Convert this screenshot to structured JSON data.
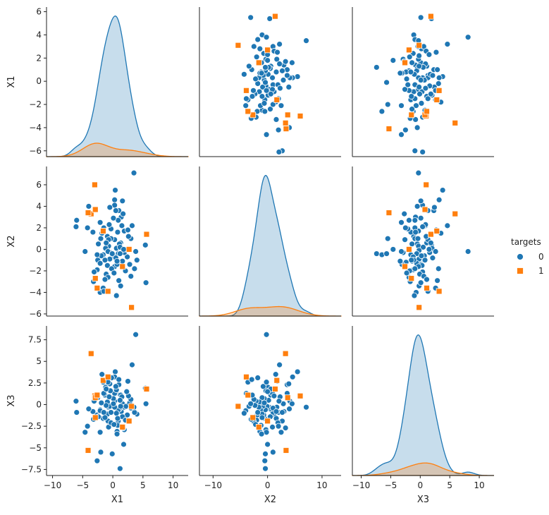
{
  "chart_data": {
    "type": "pairplot",
    "variables": [
      "X1",
      "X2",
      "X3"
    ],
    "legend": {
      "title": "targets",
      "placement": "right",
      "entries": [
        {
          "label": "0",
          "color": "#1f77b4",
          "marker": "circle"
        },
        {
          "label": "1",
          "color": "#ff7f0e",
          "marker": "square"
        }
      ]
    },
    "axes": {
      "X1": {
        "scatter_lim": [
          -11,
          12.5
        ],
        "scatter_ticks": [
          -10,
          -5,
          0,
          5,
          10
        ],
        "row_lim": [
          -6.5,
          6.4
        ],
        "row_ticks": [
          -6,
          -4,
          -2,
          0,
          2,
          4,
          6
        ]
      },
      "X2": {
        "scatter_lim": [
          -12.5,
          13.5
        ],
        "scatter_ticks": [
          -10,
          0,
          10
        ],
        "row_lim": [
          -6.2,
          7.7
        ],
        "row_ticks": [
          -6,
          -4,
          -2,
          0,
          2,
          4,
          6
        ]
      },
      "X3": {
        "scatter_lim": [
          -11.5,
          12.5
        ],
        "scatter_ticks": [
          -10,
          -5,
          0,
          5,
          10
        ],
        "row_lim": [
          -8.2,
          9.1
        ],
        "row_ticks": [
          -7.5,
          -5.0,
          -2.5,
          0.0,
          2.5,
          5.0,
          7.5
        ]
      }
    },
    "points": [
      {
        "x1": 0.4,
        "x2": 5.5,
        "x3": 3.8,
        "t": 0
      },
      {
        "x1": -1.8,
        "x2": 1.5,
        "x3": 3.5,
        "t": 0
      },
      {
        "x1": -2.1,
        "x2": 2.5,
        "x3": -3.2,
        "t": 0
      },
      {
        "x1": 0.3,
        "x2": 4.6,
        "x3": 3.2,
        "t": 0
      },
      {
        "x1": 0.3,
        "x2": 4.1,
        "x3": 0.4,
        "t": 0
      },
      {
        "x1": 1.6,
        "x2": 4.5,
        "x3": 0.1,
        "t": 0
      },
      {
        "x1": 1.0,
        "x2": 3.6,
        "x3": 2.3,
        "t": 0
      },
      {
        "x1": 0.5,
        "x2": 3.6,
        "x3": 1.3,
        "t": 0
      },
      {
        "x1": -0.5,
        "x2": 3.9,
        "x3": 2.4,
        "t": 0
      },
      {
        "x1": 1.4,
        "x2": 3.0,
        "x3": -0.8,
        "t": 0
      },
      {
        "x1": 0.9,
        "x2": 2.7,
        "x3": -1.9,
        "t": 0
      },
      {
        "x1": 5.4,
        "x2": 0.4,
        "x3": 1.9,
        "t": 0
      },
      {
        "x1": 1.3,
        "x2": 0.6,
        "x3": 1.1,
        "t": 0
      },
      {
        "x1": 1.9,
        "x2": 1.7,
        "x3": -0.3,
        "t": 0
      },
      {
        "x1": 1.5,
        "x2": 2.2,
        "x3": 0.9,
        "t": 0
      },
      {
        "x1": -0.9,
        "x2": 1.2,
        "x3": -1.1,
        "t": 0
      },
      {
        "x1": 0.3,
        "x2": 0.9,
        "x3": 1.3,
        "t": 0
      },
      {
        "x1": -0.3,
        "x2": 1.0,
        "x3": -0.9,
        "t": 0
      },
      {
        "x1": 1.1,
        "x2": 0.5,
        "x3": -0.5,
        "t": 0
      },
      {
        "x1": -0.7,
        "x2": 0.3,
        "x3": -0.3,
        "t": 0
      },
      {
        "x1": 0.6,
        "x2": 0.1,
        "x3": 1.7,
        "t": 0
      },
      {
        "x1": 1.2,
        "x2": 0.2,
        "x3": 0.5,
        "t": 0
      },
      {
        "x1": -1.2,
        "x2": 0.1,
        "x3": 2.0,
        "t": 0
      },
      {
        "x1": 2.2,
        "x2": -0.1,
        "x3": -0.2,
        "t": 0
      },
      {
        "x1": -0.4,
        "x2": -0.3,
        "x3": 1.6,
        "t": 0
      },
      {
        "x1": 0.9,
        "x2": -0.4,
        "x3": -0.6,
        "t": 0
      },
      {
        "x1": -1.6,
        "x2": -0.5,
        "x3": -1.6,
        "t": 0
      },
      {
        "x1": 0.1,
        "x2": -0.6,
        "x3": 0.7,
        "t": 0
      },
      {
        "x1": 2.4,
        "x2": -0.7,
        "x3": -1.2,
        "t": 0
      },
      {
        "x1": 0.5,
        "x2": -0.8,
        "x3": 2.1,
        "t": 0
      },
      {
        "x1": -0.5,
        "x2": -0.9,
        "x3": -0.2,
        "t": 0
      },
      {
        "x1": -2.5,
        "x2": -1.0,
        "x3": 0.8,
        "t": 0
      },
      {
        "x1": 1.6,
        "x2": -1.1,
        "x3": -1.4,
        "t": 0
      },
      {
        "x1": 0.8,
        "x2": -1.2,
        "x3": -2.4,
        "t": 0
      },
      {
        "x1": -2.1,
        "x2": -1.3,
        "x3": -0.6,
        "t": 0
      },
      {
        "x1": 2.8,
        "x2": -1.4,
        "x3": 0.2,
        "t": 0
      },
      {
        "x1": -0.9,
        "x2": -1.5,
        "x3": 0.3,
        "t": 0
      },
      {
        "x1": 0.3,
        "x2": -1.6,
        "x3": -0.3,
        "t": 0
      },
      {
        "x1": -0.2,
        "x2": -1.8,
        "x3": 3.1,
        "t": 0
      },
      {
        "x1": -2.6,
        "x2": -1.9,
        "x3": -1.2,
        "t": 0
      },
      {
        "x1": 2.1,
        "x2": -2.0,
        "x3": -1.8,
        "t": 0
      },
      {
        "x1": -3.1,
        "x2": -2.1,
        "x3": 0.4,
        "t": 0
      },
      {
        "x1": -1.1,
        "x2": -2.3,
        "x3": -0.1,
        "t": 0
      },
      {
        "x1": 3.0,
        "x2": -2.5,
        "x3": 0.6,
        "t": 0
      },
      {
        "x1": -0.8,
        "x2": -2.6,
        "x3": -1.9,
        "t": 0
      },
      {
        "x1": -1.3,
        "x2": -2.8,
        "x3": 1.1,
        "t": 0
      },
      {
        "x1": -3.2,
        "x2": -3.0,
        "x3": -1.7,
        "t": 0
      },
      {
        "x1": -1.6,
        "x2": -3.6,
        "x3": 2.6,
        "t": 0
      },
      {
        "x1": -2.1,
        "x2": -4.0,
        "x3": -0.7,
        "t": 0
      },
      {
        "x1": 0.6,
        "x2": -4.3,
        "x3": -1.0,
        "t": 0
      },
      {
        "x1": -1.5,
        "x2": -3.9,
        "x3": 1.3,
        "t": 0
      },
      {
        "x1": 1.0,
        "x2": -2.9,
        "x3": 2.9,
        "t": 0
      },
      {
        "x1": -0.7,
        "x2": 0.9,
        "x3": -2.6,
        "t": 0
      },
      {
        "x1": 0.8,
        "x2": 1.6,
        "x3": -1.6,
        "t": 0
      },
      {
        "x1": -0.3,
        "x2": 1.9,
        "x3": -2.1,
        "t": 0
      },
      {
        "x1": 3.0,
        "x2": 1.0,
        "x3": -0.4,
        "t": 0
      },
      {
        "x1": -0.6,
        "x2": 2.3,
        "x3": 0.9,
        "t": 0
      },
      {
        "x1": 1.9,
        "x2": -0.3,
        "x3": -2.9,
        "t": 0
      },
      {
        "x1": -1.1,
        "x2": 0.6,
        "x3": 1.8,
        "t": 0
      },
      {
        "x1": 0.1,
        "x2": 2.9,
        "x3": 0.1,
        "t": 0
      },
      {
        "x1": 2.6,
        "x2": 1.2,
        "x3": 1.0,
        "t": 0
      },
      {
        "x1": -1.9,
        "x2": -0.6,
        "x3": 0.2,
        "t": 0
      },
      {
        "x1": 1.3,
        "x2": -3.4,
        "x3": -0.2,
        "t": 0
      },
      {
        "x1": -2.4,
        "x2": 0.5,
        "x3": -1.4,
        "t": 0
      },
      {
        "x1": 0.7,
        "x2": -1.4,
        "x3": -3.1,
        "t": 0
      },
      {
        "x1": -1.5,
        "x2": 2.0,
        "x3": -0.9,
        "t": 0
      },
      {
        "x1": 2.3,
        "x2": 0.0,
        "x3": 1.5,
        "t": 0
      },
      {
        "x1": 4.0,
        "x2": -1.0,
        "x3": -1.1,
        "t": 0
      },
      {
        "x1": -0.8,
        "x2": -0.2,
        "x3": 2.6,
        "t": 0
      },
      {
        "x1": 0.2,
        "x2": -2.2,
        "x3": -2.3,
        "t": 0
      },
      {
        "x1": -3.3,
        "x2": 1.6,
        "x3": -0.8,
        "t": 0
      },
      {
        "x1": 1.7,
        "x2": 3.3,
        "x3": -2.7,
        "t": 0
      },
      {
        "x1": -1.3,
        "x2": -1.0,
        "x3": -1.5,
        "t": 0
      },
      {
        "x1": 3.6,
        "x2": -1.8,
        "x3": -0.9,
        "t": 0
      },
      {
        "x1": 3.5,
        "x2": 7.1,
        "x3": -0.3,
        "t": 0
      },
      {
        "x1": -6.0,
        "x2": 2.7,
        "x3": -0.9,
        "t": 0
      },
      {
        "x1": -6.1,
        "x2": 2.1,
        "x3": 0.4,
        "t": 0
      },
      {
        "x1": 5.5,
        "x2": -3.1,
        "x3": 0.1,
        "t": 0
      },
      {
        "x1": 3.8,
        "x2": -0.2,
        "x3": 8.1,
        "t": 0
      },
      {
        "x1": 1.2,
        "x2": -0.4,
        "x3": -7.4,
        "t": 0
      },
      {
        "x1": -2.6,
        "x2": -0.5,
        "x3": -6.5,
        "t": 0
      },
      {
        "x1": -4.2,
        "x2": 2.0,
        "x3": -2.5,
        "t": 0
      },
      {
        "x1": -4.0,
        "x2": 4.0,
        "x3": -0.5,
        "t": 0
      },
      {
        "x1": 2.5,
        "x2": 1.8,
        "x3": 2.7,
        "t": 0
      },
      {
        "x1": -2.0,
        "x2": 1.0,
        "x3": -5.5,
        "t": 0
      },
      {
        "x1": -4.6,
        "x2": -0.2,
        "x3": -3.2,
        "t": 0
      },
      {
        "x1": 1.8,
        "x2": 0.0,
        "x3": -4.6,
        "t": 0
      },
      {
        "x1": 0.7,
        "x2": -1.1,
        "x3": -3.4,
        "t": 0
      },
      {
        "x1": -0.1,
        "x2": -0.4,
        "x3": -5.7,
        "t": 0
      },
      {
        "x1": 3.2,
        "x2": 2.2,
        "x3": 4.6,
        "t": 0
      },
      {
        "x1": -3.6,
        "x2": 3.3,
        "x3": 5.9,
        "t": 1
      },
      {
        "x1": -3.0,
        "x2": 6.0,
        "x3": 1.0,
        "t": 1
      },
      {
        "x1": -2.9,
        "x2": 3.7,
        "x3": 0.8,
        "t": 1
      },
      {
        "x1": -4.1,
        "x2": 3.4,
        "x3": -5.3,
        "t": 1
      },
      {
        "x1": -2.9,
        "x2": -2.7,
        "x3": -1.5,
        "t": 1
      },
      {
        "x1": -1.6,
        "x2": 1.7,
        "x3": 2.8,
        "t": 1
      },
      {
        "x1": 1.6,
        "x2": -1.6,
        "x3": -2.6,
        "t": 1
      },
      {
        "x1": 5.6,
        "x2": 1.4,
        "x3": 1.8,
        "t": 1
      },
      {
        "x1": -2.6,
        "x2": -3.6,
        "x3": 1.1,
        "t": 1
      },
      {
        "x1": 3.1,
        "x2": -5.4,
        "x3": -0.2,
        "t": 1
      },
      {
        "x1": -0.8,
        "x2": -3.9,
        "x3": 3.2,
        "t": 1
      },
      {
        "x1": 2.7,
        "x2": 0.0,
        "x3": -1.9,
        "t": 1
      }
    ]
  }
}
